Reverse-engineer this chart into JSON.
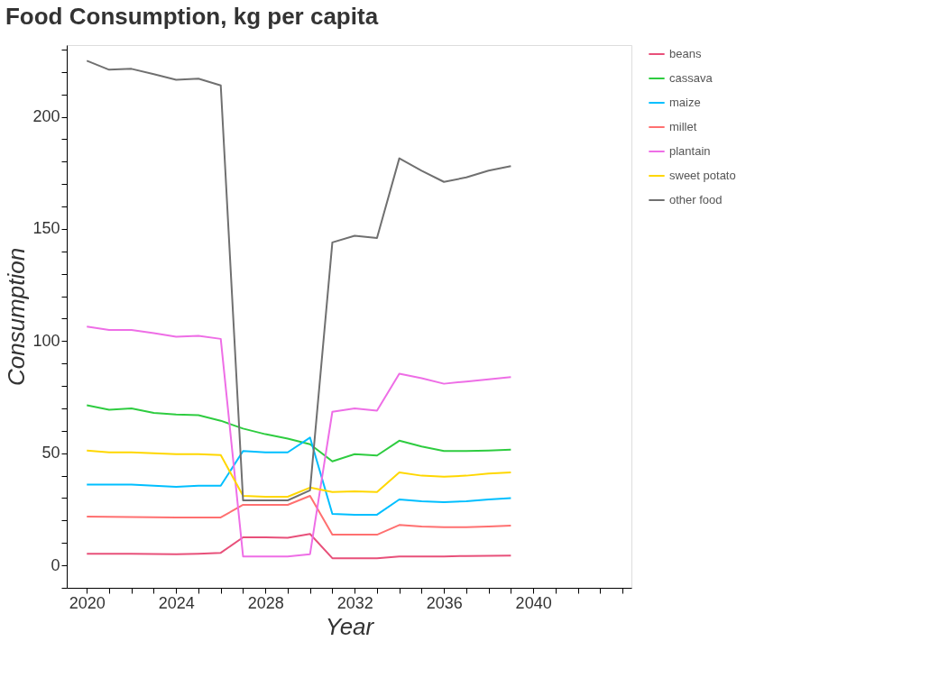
{
  "chart_data": {
    "type": "line",
    "title": "Food Consumption, kg per capita",
    "xlabel": "Year",
    "ylabel": "Consumption",
    "x": [
      2020,
      2021,
      2022,
      2023,
      2024,
      2025,
      2026,
      2027,
      2028,
      2029,
      2030,
      2031,
      2032,
      2033,
      2034,
      2035,
      2036,
      2037,
      2038,
      2039
    ],
    "series": [
      {
        "name": "beans",
        "color": "#e8507a",
        "values": [
          5.2,
          5.2,
          5.2,
          5.1,
          5,
          5.2,
          5.6,
          12.5,
          12.5,
          12.3,
          14,
          3.2,
          3.2,
          3.2,
          4,
          4,
          4,
          4.2,
          4.3,
          4.4
        ]
      },
      {
        "name": "cassava",
        "color": "#2ecc40",
        "values": [
          71.4,
          69.4,
          70,
          68,
          67.3,
          67,
          64.5,
          61,
          58.5,
          56.5,
          54,
          46.4,
          49.6,
          49,
          55.6,
          53,
          51,
          51,
          51.2,
          51.6
        ]
      },
      {
        "name": "maize",
        "color": "#00bfff",
        "values": [
          36,
          36,
          36,
          35.5,
          35,
          35.5,
          35.5,
          51,
          50.4,
          50.4,
          57,
          23,
          22.6,
          22.6,
          29.4,
          28.6,
          28.2,
          28.6,
          29.4,
          30
        ]
      },
      {
        "name": "millet",
        "color": "#ff7070",
        "values": [
          21.8,
          21.7,
          21.6,
          21.5,
          21.4,
          21.4,
          21.4,
          27,
          27,
          27,
          31,
          13.7,
          13.7,
          13.7,
          18,
          17.3,
          17,
          17,
          17.3,
          17.7
        ]
      },
      {
        "name": "plantain",
        "color": "#ee6ee6",
        "values": [
          106.5,
          105,
          105,
          103.6,
          102,
          102.4,
          101,
          4,
          4,
          4,
          5,
          68.5,
          70,
          69,
          85.5,
          83.5,
          81,
          82,
          83,
          84
        ]
      },
      {
        "name": "sweet potato",
        "color": "#ffd700",
        "values": [
          51.2,
          50.4,
          50.4,
          50,
          49.6,
          49.6,
          49.2,
          31,
          30.6,
          30.6,
          34.7,
          32.7,
          33,
          32.7,
          41.5,
          40,
          39.5,
          40,
          41,
          41.5
        ]
      },
      {
        "name": "other food",
        "color": "#707070",
        "values": [
          225,
          221,
          221.4,
          219,
          216.5,
          217,
          214,
          29,
          29,
          29,
          33.5,
          144,
          147,
          146,
          181.5,
          176,
          171,
          173,
          176,
          178
        ]
      }
    ],
    "xlim": [
      2019.1,
      2044.4
    ],
    "xticks": [
      2020,
      {
        "value": 2021,
        "label": null
      },
      {
        "value": 2022,
        "label": null
      },
      {
        "value": 2023,
        "label": null
      },
      2024,
      {
        "value": 2025,
        "label": null
      },
      {
        "value": 2026,
        "label": null
      },
      {
        "value": 2027,
        "label": null
      },
      2028,
      {
        "value": 2029,
        "label": null
      },
      {
        "value": 2030,
        "label": null
      },
      {
        "value": 2031,
        "label": null
      },
      2032,
      {
        "value": 2033,
        "label": null
      },
      {
        "value": 2034,
        "label": null
      },
      {
        "value": 2035,
        "label": null
      },
      2036,
      {
        "value": 2037,
        "label": null
      },
      {
        "value": 2038,
        "label": null
      },
      {
        "value": 2039,
        "label": null
      },
      2040,
      {
        "value": 2041,
        "label": null
      },
      {
        "value": 2042,
        "label": null
      },
      {
        "value": 2043,
        "label": null
      },
      {
        "value": 2044,
        "label": null
      }
    ],
    "ylim": [
      -10,
      232
    ],
    "yticks": [
      {
        "value": -10,
        "label": null
      },
      0,
      {
        "value": 10,
        "label": null
      },
      {
        "value": 20,
        "label": null
      },
      {
        "value": 30,
        "label": null
      },
      {
        "value": 40,
        "label": null
      },
      50,
      {
        "value": 60,
        "label": null
      },
      {
        "value": 70,
        "label": null
      },
      {
        "value": 80,
        "label": null
      },
      {
        "value": 90,
        "label": null
      },
      100,
      {
        "value": 110,
        "label": null
      },
      {
        "value": 120,
        "label": null
      },
      {
        "value": 130,
        "label": null
      },
      {
        "value": 140,
        "label": null
      },
      150,
      {
        "value": 160,
        "label": null
      },
      {
        "value": 170,
        "label": null
      },
      {
        "value": 180,
        "label": null
      },
      {
        "value": 190,
        "label": null
      },
      200,
      {
        "value": 210,
        "label": null
      },
      {
        "value": 220,
        "label": null
      },
      {
        "value": 230,
        "label": null
      }
    ],
    "grid": false,
    "legend": "right",
    "marker": "none",
    "line_style": "solid"
  }
}
